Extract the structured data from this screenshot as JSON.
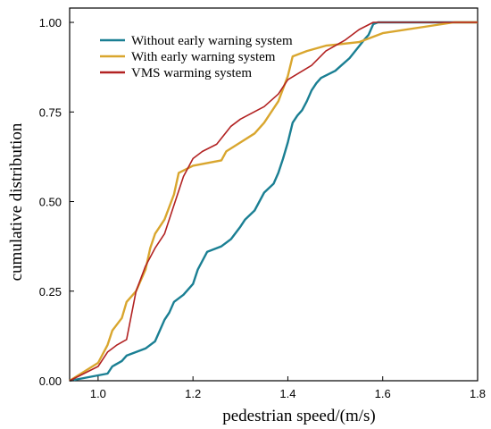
{
  "chart_data": {
    "type": "line",
    "title": "",
    "xlabel": "pedestrian speed/(m/s)",
    "ylabel": "cumulative distribution",
    "xlim": [
      0.94,
      1.8
    ],
    "ylim": [
      0,
      1.04
    ],
    "xticks": [
      1.0,
      1.2,
      1.4,
      1.6,
      1.8
    ],
    "xtick_labels": [
      "1.0",
      "1.2",
      "1.4",
      "1.6",
      "1.8"
    ],
    "yticks": [
      0,
      0.25,
      0.5,
      0.75,
      1.0
    ],
    "ytick_labels": [
      "0.00",
      "0.25",
      "0.50",
      "0.75",
      "1.00"
    ],
    "grid": false,
    "legend_position": "top-left",
    "series": [
      {
        "name": "Without early warning system",
        "color": "#1a7f93",
        "points": [
          [
            0.94,
            0.0
          ],
          [
            1.02,
            0.02
          ],
          [
            1.03,
            0.04
          ],
          [
            1.05,
            0.055
          ],
          [
            1.06,
            0.07
          ],
          [
            1.08,
            0.08
          ],
          [
            1.1,
            0.09
          ],
          [
            1.12,
            0.11
          ],
          [
            1.13,
            0.14
          ],
          [
            1.14,
            0.17
          ],
          [
            1.15,
            0.19
          ],
          [
            1.16,
            0.22
          ],
          [
            1.18,
            0.24
          ],
          [
            1.2,
            0.27
          ],
          [
            1.21,
            0.31
          ],
          [
            1.23,
            0.36
          ],
          [
            1.26,
            0.375
          ],
          [
            1.28,
            0.395
          ],
          [
            1.3,
            0.43
          ],
          [
            1.31,
            0.45
          ],
          [
            1.33,
            0.475
          ],
          [
            1.35,
            0.525
          ],
          [
            1.37,
            0.55
          ],
          [
            1.38,
            0.58
          ],
          [
            1.39,
            0.62
          ],
          [
            1.4,
            0.665
          ],
          [
            1.41,
            0.72
          ],
          [
            1.42,
            0.74
          ],
          [
            1.43,
            0.755
          ],
          [
            1.44,
            0.78
          ],
          [
            1.45,
            0.81
          ],
          [
            1.46,
            0.83
          ],
          [
            1.47,
            0.845
          ],
          [
            1.5,
            0.865
          ],
          [
            1.53,
            0.9
          ],
          [
            1.56,
            0.95
          ],
          [
            1.57,
            0.965
          ],
          [
            1.58,
            0.995
          ],
          [
            1.59,
            1.0
          ],
          [
            1.8,
            1.0
          ]
        ]
      },
      {
        "name": "With  early warning system",
        "color": "#d9a62e",
        "points": [
          [
            0.94,
            0.0
          ],
          [
            1.0,
            0.05
          ],
          [
            1.02,
            0.1
          ],
          [
            1.03,
            0.14
          ],
          [
            1.05,
            0.175
          ],
          [
            1.06,
            0.22
          ],
          [
            1.08,
            0.25
          ],
          [
            1.1,
            0.31
          ],
          [
            1.11,
            0.37
          ],
          [
            1.12,
            0.41
          ],
          [
            1.14,
            0.45
          ],
          [
            1.16,
            0.52
          ],
          [
            1.17,
            0.58
          ],
          [
            1.2,
            0.6
          ],
          [
            1.26,
            0.615
          ],
          [
            1.27,
            0.64
          ],
          [
            1.3,
            0.665
          ],
          [
            1.33,
            0.69
          ],
          [
            1.35,
            0.72
          ],
          [
            1.38,
            0.78
          ],
          [
            1.4,
            0.85
          ],
          [
            1.41,
            0.905
          ],
          [
            1.44,
            0.92
          ],
          [
            1.48,
            0.935
          ],
          [
            1.55,
            0.945
          ],
          [
            1.6,
            0.97
          ],
          [
            1.7,
            0.99
          ],
          [
            1.75,
            1.0
          ],
          [
            1.8,
            1.0
          ]
        ]
      },
      {
        "name": "VMS warming system",
        "color": "#b22222",
        "points": [
          [
            0.94,
            0.0
          ],
          [
            1.0,
            0.04
          ],
          [
            1.02,
            0.08
          ],
          [
            1.04,
            0.1
          ],
          [
            1.06,
            0.115
          ],
          [
            1.08,
            0.25
          ],
          [
            1.1,
            0.32
          ],
          [
            1.12,
            0.37
          ],
          [
            1.14,
            0.41
          ],
          [
            1.16,
            0.49
          ],
          [
            1.18,
            0.57
          ],
          [
            1.2,
            0.62
          ],
          [
            1.22,
            0.64
          ],
          [
            1.25,
            0.66
          ],
          [
            1.28,
            0.71
          ],
          [
            1.3,
            0.73
          ],
          [
            1.35,
            0.765
          ],
          [
            1.38,
            0.8
          ],
          [
            1.4,
            0.84
          ],
          [
            1.45,
            0.88
          ],
          [
            1.48,
            0.92
          ],
          [
            1.52,
            0.95
          ],
          [
            1.55,
            0.98
          ],
          [
            1.58,
            1.0
          ],
          [
            1.8,
            1.0
          ]
        ]
      }
    ]
  }
}
